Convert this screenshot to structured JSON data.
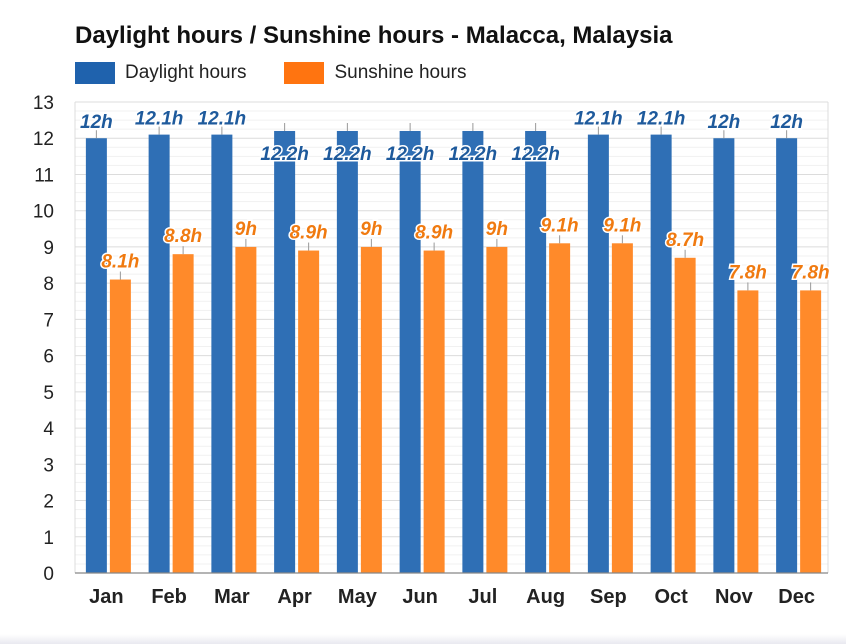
{
  "chart_data": {
    "type": "bar",
    "title": "Daylight hours / Sunshine hours - Malacca, Malaysia",
    "categories": [
      "Jan",
      "Feb",
      "Mar",
      "Apr",
      "May",
      "Jun",
      "Jul",
      "Aug",
      "Sep",
      "Oct",
      "Nov",
      "Dec"
    ],
    "series": [
      {
        "name": "Daylight hours",
        "values": [
          12,
          12.1,
          12.1,
          12.2,
          12.2,
          12.2,
          12.2,
          12.2,
          12.1,
          12.1,
          12,
          12
        ],
        "labels": [
          "12h",
          "12.1h",
          "12.1h",
          "12.2h",
          "12.2h",
          "12.2h",
          "12.2h",
          "12.2h",
          "12.1h",
          "12.1h",
          "12h",
          "12h"
        ],
        "color": "#2f6fb5",
        "label_color": "#1e5a9c"
      },
      {
        "name": "Sunshine hours",
        "values": [
          8.1,
          8.8,
          9,
          8.9,
          9,
          8.9,
          9,
          9.1,
          9.1,
          8.7,
          7.8,
          7.8
        ],
        "labels": [
          "8.1h",
          "8.8h",
          "9h",
          "8.9h",
          "9h",
          "8.9h",
          "9h",
          "9.1h",
          "9.1h",
          "8.7h",
          "7.8h",
          "7.8h"
        ],
        "color": "#ff8a2a",
        "label_color": "#f07a10"
      }
    ],
    "ylim": [
      0,
      13
    ],
    "yticks": [
      0,
      1,
      2,
      3,
      4,
      5,
      6,
      7,
      8,
      9,
      10,
      11,
      12,
      13
    ],
    "grid": true,
    "legend_position": "top-left",
    "xlabel": "",
    "ylabel": ""
  },
  "legend": {
    "daylight_label": "Daylight hours",
    "sunshine_label": "Sunshine hours",
    "daylight_color": "#1f62ad",
    "sunshine_color": "#ff7410"
  }
}
